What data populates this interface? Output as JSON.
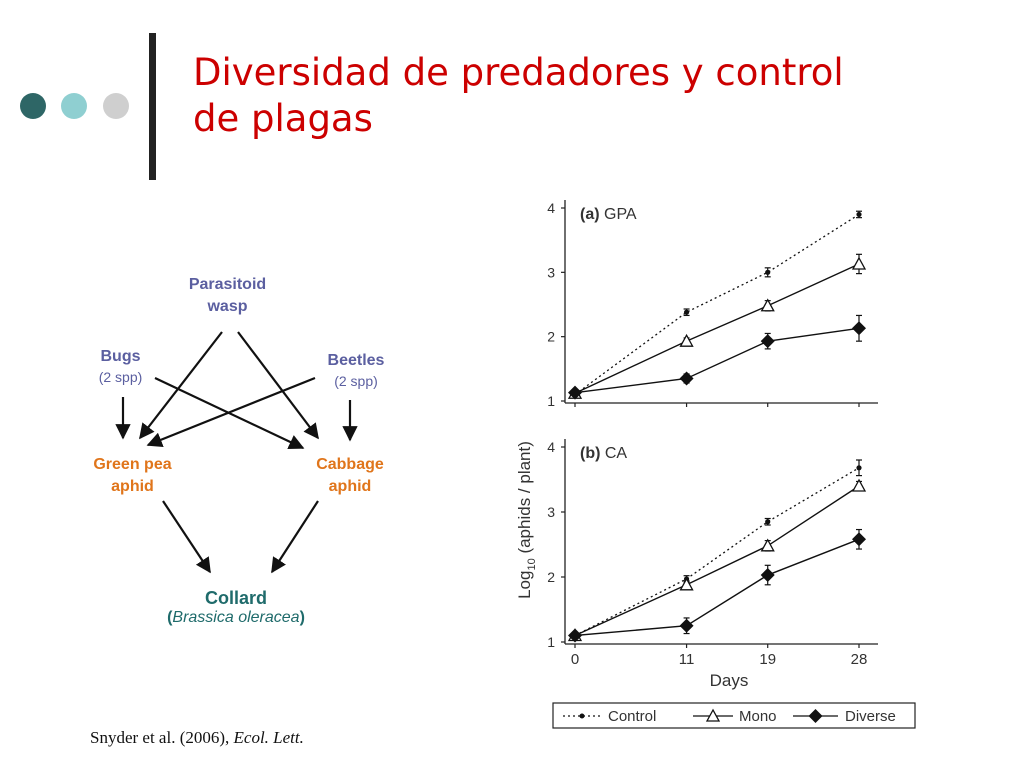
{
  "colors": {
    "dot1": "#2e6666",
    "dot2": "#8fcfd1",
    "dot3": "#cfcfcf",
    "title": "#cc0000",
    "predator_text": "#5b5fa0",
    "prey_text": "#e0751b",
    "plant_text": "#1f6b6b"
  },
  "slide": {
    "title_line1": "Diversidad de predadores y control",
    "title_line2": "de plagas",
    "citation_main": "Snyder et al. (2006),",
    "citation_journal": "Ecol. Lett."
  },
  "foodweb": {
    "parasitoid": {
      "name": "Parasitoid",
      "name2": "wasp"
    },
    "bugs": {
      "name": "Bugs",
      "sub": "(2 spp)"
    },
    "beetles": {
      "name": "Beetles",
      "sub": "(2 spp)"
    },
    "green_pea": {
      "name": "Green pea",
      "name2": "aphid"
    },
    "cabbage": {
      "name": "Cabbage",
      "name2": "aphid"
    },
    "collard": {
      "name": "Collard",
      "sci_open": "(",
      "sci": "Brassica oleracea",
      "sci_close": ")"
    }
  },
  "chart_data": [
    {
      "type": "line",
      "panel_label": "(a)",
      "panel_name": "GPA",
      "x": [
        0,
        11,
        19,
        28
      ],
      "xticks": [
        "0",
        "11",
        "19",
        "28"
      ],
      "ylim": [
        1,
        4
      ],
      "yticks": [
        "1",
        "2",
        "3",
        "4"
      ],
      "ylabel_main": "Log",
      "ylabel_sub": "10",
      "ylabel_rest": " (aphids / plant)",
      "series": [
        {
          "name": "Control",
          "style": "dotted",
          "marker": "dot",
          "values": [
            1.1,
            2.38,
            3.0,
            3.9
          ],
          "err": [
            0.03,
            0.05,
            0.07,
            0.05
          ]
        },
        {
          "name": "Mono",
          "style": "solid",
          "marker": "triangle",
          "values": [
            1.12,
            1.93,
            2.48,
            3.13
          ],
          "err": [
            0.04,
            0.05,
            0.08,
            0.15
          ]
        },
        {
          "name": "Diverse",
          "style": "solid",
          "marker": "diamond",
          "values": [
            1.13,
            1.35,
            1.93,
            2.13
          ],
          "err": [
            0.04,
            0.07,
            0.12,
            0.2
          ]
        }
      ]
    },
    {
      "type": "line",
      "panel_label": "(b)",
      "panel_name": "CA",
      "x": [
        0,
        11,
        19,
        28
      ],
      "xticks": [
        "0",
        "11",
        "19",
        "28"
      ],
      "xlabel": "Days",
      "ylim": [
        1,
        4
      ],
      "yticks": [
        "1",
        "2",
        "3",
        "4"
      ],
      "series": [
        {
          "name": "Control",
          "style": "dotted",
          "marker": "dot",
          "values": [
            1.1,
            1.97,
            2.85,
            3.68
          ],
          "err": [
            0.03,
            0.05,
            0.05,
            0.12
          ]
        },
        {
          "name": "Mono",
          "style": "solid",
          "marker": "triangle",
          "values": [
            1.1,
            1.88,
            2.48,
            3.4
          ],
          "err": [
            0.04,
            0.06,
            0.08,
            0.07
          ]
        },
        {
          "name": "Diverse",
          "style": "solid",
          "marker": "diamond",
          "values": [
            1.1,
            1.25,
            2.03,
            2.58
          ],
          "err": [
            0.05,
            0.12,
            0.15,
            0.15
          ]
        }
      ]
    }
  ],
  "legend": {
    "items": [
      "Control",
      "Mono",
      "Diverse"
    ]
  }
}
